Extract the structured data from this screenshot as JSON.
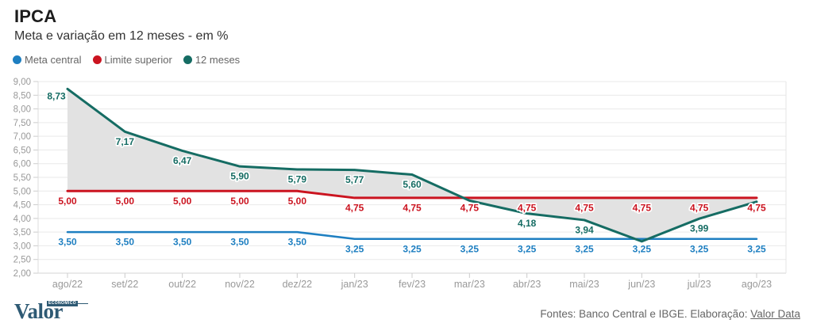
{
  "chart_data": {
    "type": "line",
    "title": "IPCA",
    "subtitle": "Meta e variação em 12 meses - em %",
    "categories": [
      "ago/22",
      "set/22",
      "out/22",
      "nov/22",
      "dez/22",
      "jan/23",
      "fev/23",
      "mar/23",
      "abr/23",
      "mai/23",
      "jun/23",
      "jul/23",
      "ago/23"
    ],
    "ylim": [
      2.0,
      9.0
    ],
    "ytick_labels": [
      "9,00",
      "8,50",
      "8,00",
      "7,50",
      "7,00",
      "6,50",
      "6,00",
      "5,50",
      "5,00",
      "4,50",
      "4,00",
      "3,50",
      "3,00",
      "2,50",
      "2,00"
    ],
    "grid": "horizontal",
    "legend_position": "top-left",
    "xlabel": "",
    "ylabel": "",
    "band_fill_between": [
      "12 meses",
      "Limite superior"
    ],
    "band_color": "#e2e2e2",
    "series": [
      {
        "name": "Meta central",
        "color": "#1e7fc1",
        "line_width": 2.5,
        "values": [
          3.5,
          3.5,
          3.5,
          3.5,
          3.5,
          3.25,
          3.25,
          3.25,
          3.25,
          3.25,
          3.25,
          3.25,
          3.25
        ],
        "labels": [
          "3,50",
          "3,50",
          "3,50",
          "3,50",
          "3,50",
          "3,25",
          "3,25",
          "3,25",
          "3,25",
          "3,25",
          "3,25",
          "3,25",
          "3,25"
        ]
      },
      {
        "name": "Limite superior",
        "color": "#cb1420",
        "line_width": 3,
        "values": [
          5.0,
          5.0,
          5.0,
          5.0,
          5.0,
          4.75,
          4.75,
          4.75,
          4.75,
          4.75,
          4.75,
          4.75,
          4.75
        ],
        "labels": [
          "5,00",
          "5,00",
          "5,00",
          "5,00",
          "5,00",
          "4,75",
          "4,75",
          "4,75",
          "4,75",
          "4,75",
          "4,75",
          "4,75",
          "4,75"
        ]
      },
      {
        "name": "12 meses",
        "color": "#156c63",
        "line_width": 3,
        "values": [
          8.73,
          7.17,
          6.47,
          5.9,
          5.79,
          5.77,
          5.6,
          4.65,
          4.18,
          3.94,
          3.16,
          3.99,
          4.61
        ],
        "labels": [
          "8,73",
          "7,17",
          "6,47",
          "5,90",
          "5,79",
          "5,77",
          "5,60",
          "",
          "4,18",
          "3,94",
          "",
          "3,99",
          ""
        ]
      }
    ]
  },
  "footer": {
    "logo_text": "Valor",
    "logo_small_text": "ECONÔMICO",
    "sources_prefix": "Fontes: Banco Central e IBGE. Elaboração: ",
    "sources_link": "Valor Data"
  }
}
